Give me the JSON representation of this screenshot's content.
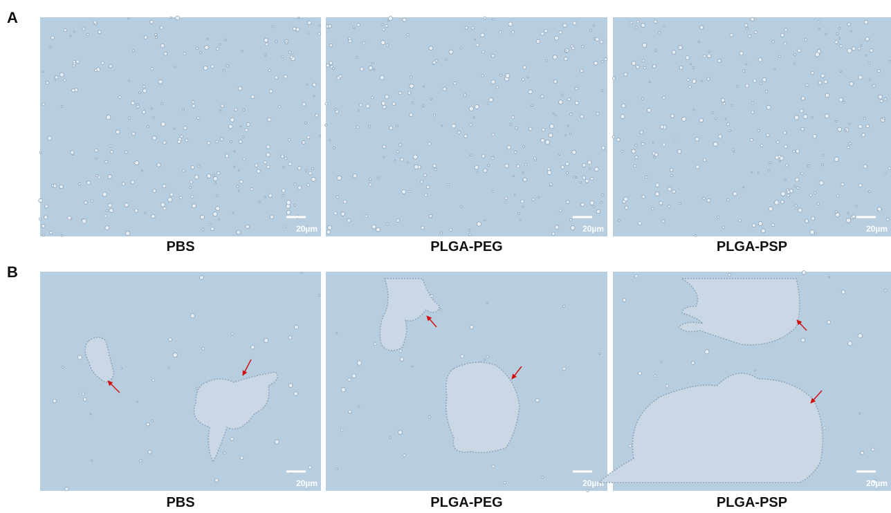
{
  "figure": {
    "panels": [
      {
        "label": "A",
        "images": [
          {
            "caption": "PBS",
            "scale_bar": "20µm"
          },
          {
            "caption": "PLGA-PEG",
            "scale_bar": "20µm"
          },
          {
            "caption": "PLGA-PSP",
            "scale_bar": "20µm"
          }
        ]
      },
      {
        "label": "B",
        "images": [
          {
            "caption": "PBS",
            "scale_bar": "20µm"
          },
          {
            "caption": "PLGA-PEG",
            "scale_bar": "20µm"
          },
          {
            "caption": "PLGA-PSP",
            "scale_bar": "20µm"
          }
        ]
      }
    ]
  }
}
